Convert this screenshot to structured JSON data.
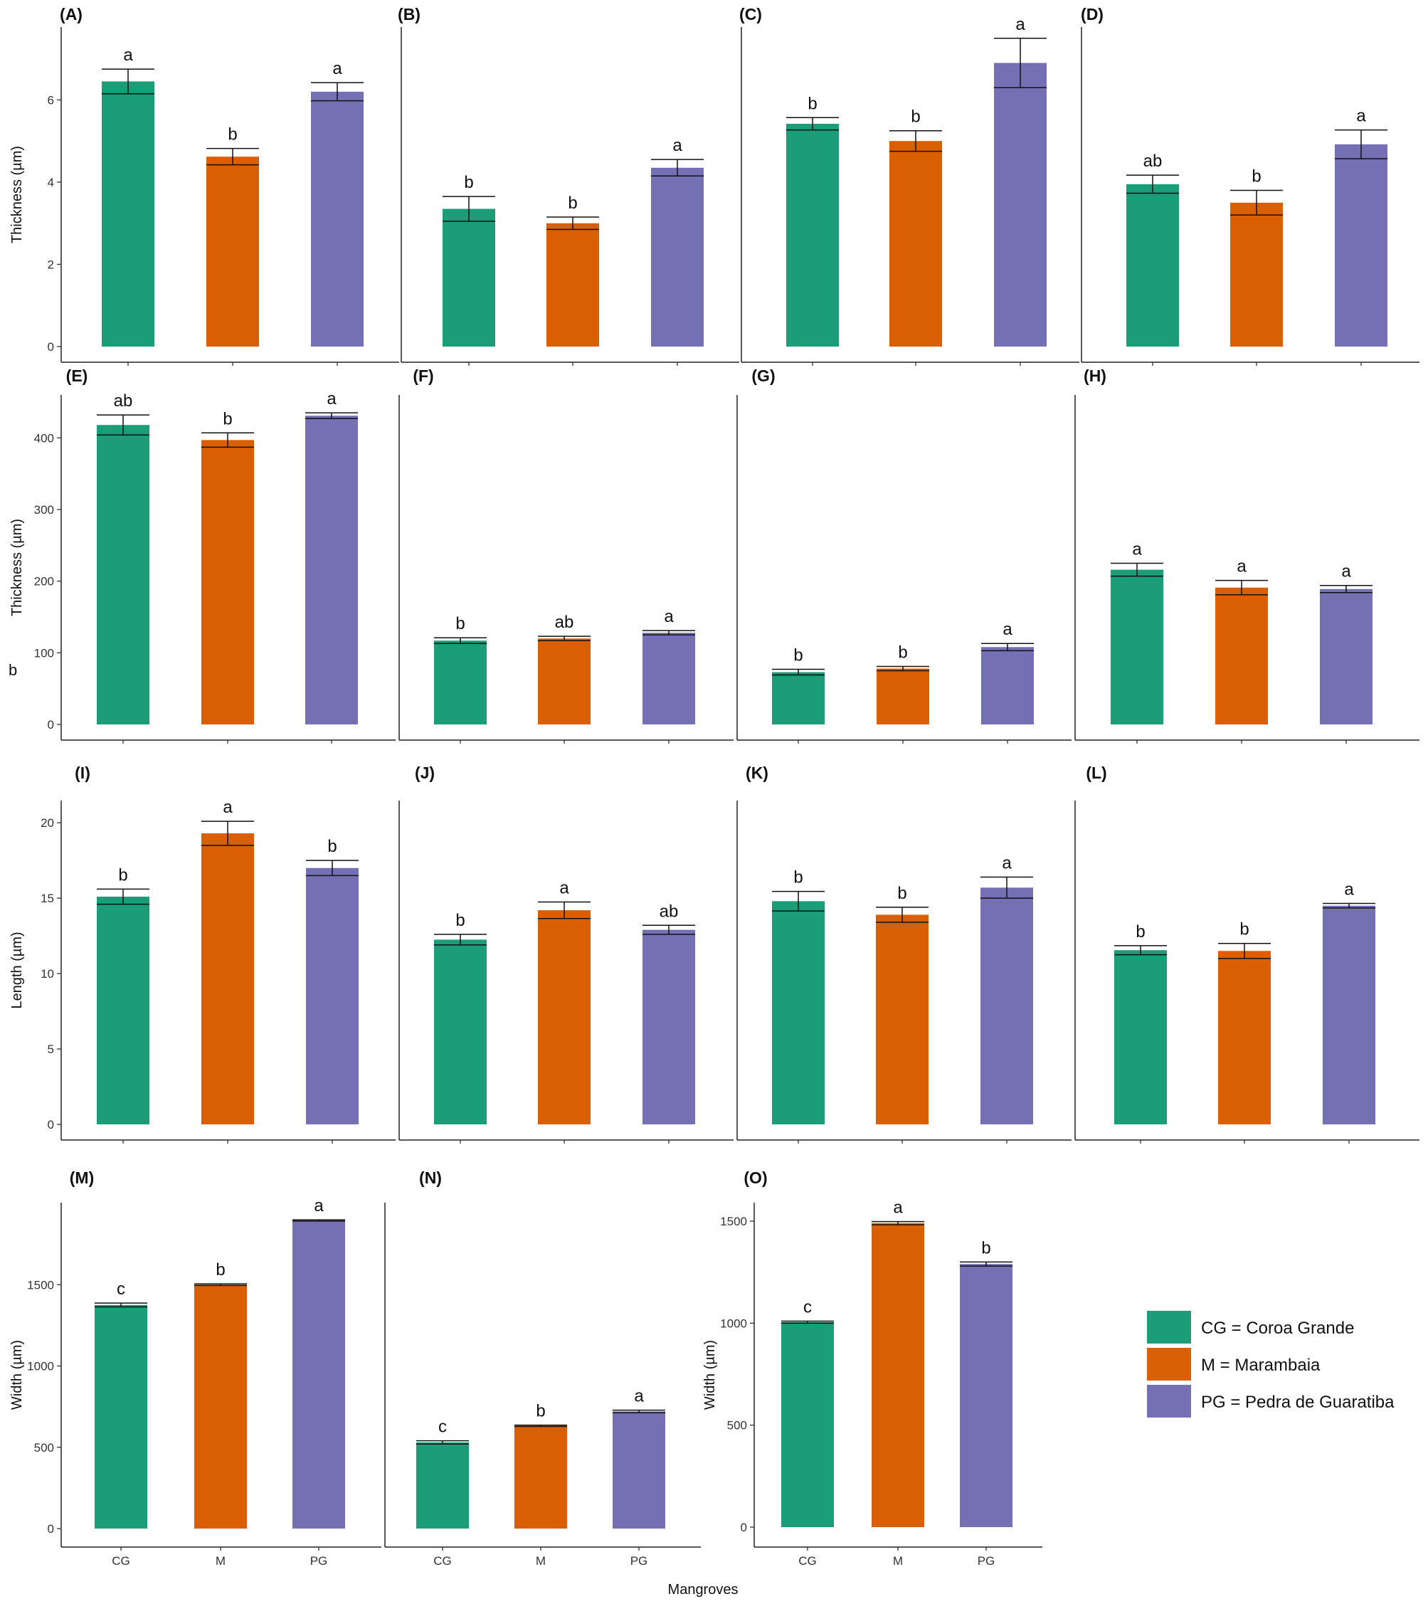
{
  "colors": {
    "CG": "#1b9e77",
    "M": "#d95f02",
    "PG": "#7570b3"
  },
  "x_axis_title": "Mangroves",
  "stray_text": "b",
  "legend": [
    {
      "key": "CG",
      "label": "CG = Coroa Grande"
    },
    {
      "key": "M",
      "label": "M = Marambaia"
    },
    {
      "key": "PG",
      "label": "PG = Pedra de Guaratiba"
    }
  ],
  "chart_data": [
    {
      "panel": "(A)",
      "type": "bar",
      "categories": [
        "CG",
        "M",
        "PG"
      ],
      "ylabel": "Thickness (µm)",
      "ylim": [
        0,
        7.6
      ],
      "yticks": [
        0,
        2,
        4,
        6
      ],
      "values": [
        6.45,
        4.62,
        6.2
      ],
      "errors": [
        0.3,
        0.2,
        0.22
      ],
      "letters": [
        "a",
        "b",
        "a"
      ]
    },
    {
      "panel": "(B)",
      "type": "bar",
      "categories": [
        "CG",
        "M",
        "PG"
      ],
      "ylabel": "",
      "ylim": [
        0,
        7.6
      ],
      "yticks": [],
      "values": [
        3.35,
        3.0,
        4.35
      ],
      "errors": [
        0.3,
        0.15,
        0.2
      ],
      "letters": [
        "b",
        "b",
        "a"
      ]
    },
    {
      "panel": "(C)",
      "type": "bar",
      "categories": [
        "CG",
        "M",
        "PG"
      ],
      "ylabel": "",
      "ylim": [
        0,
        7.6
      ],
      "yticks": [],
      "values": [
        5.42,
        5.0,
        6.9
      ],
      "errors": [
        0.15,
        0.25,
        0.6
      ],
      "letters": [
        "b",
        "b",
        "a"
      ]
    },
    {
      "panel": "(D)",
      "type": "bar",
      "categories": [
        "CG",
        "M",
        "PG"
      ],
      "ylabel": "",
      "ylim": [
        0,
        7.6
      ],
      "yticks": [],
      "values": [
        3.95,
        3.5,
        4.92
      ],
      "errors": [
        0.22,
        0.3,
        0.35
      ],
      "letters": [
        "ab",
        "b",
        "a"
      ]
    },
    {
      "panel": "(E)",
      "type": "bar",
      "categories": [
        "CG",
        "M",
        "PG"
      ],
      "ylabel": "Thickness (µm)",
      "ylim": [
        0,
        450
      ],
      "yticks": [
        0,
        100,
        200,
        300,
        400
      ],
      "values": [
        418,
        397,
        431
      ],
      "errors": [
        14,
        10,
        4
      ],
      "letters": [
        "ab",
        "b",
        "a"
      ]
    },
    {
      "panel": "(F)",
      "type": "bar",
      "categories": [
        "CG",
        "M",
        "PG"
      ],
      "ylabel": "",
      "ylim": [
        0,
        450
      ],
      "yticks": [],
      "values": [
        117,
        120,
        128
      ],
      "errors": [
        4,
        3,
        3
      ],
      "letters": [
        "b",
        "ab",
        "a"
      ]
    },
    {
      "panel": "(G)",
      "type": "bar",
      "categories": [
        "CG",
        "M",
        "PG"
      ],
      "ylabel": "",
      "ylim": [
        0,
        450
      ],
      "yticks": [],
      "values": [
        73,
        78,
        108
      ],
      "errors": [
        4,
        3,
        5
      ],
      "letters": [
        "b",
        "b",
        "a"
      ]
    },
    {
      "panel": "(H)",
      "type": "bar",
      "categories": [
        "CG",
        "M",
        "PG"
      ],
      "ylabel": "",
      "ylim": [
        0,
        450
      ],
      "yticks": [],
      "values": [
        216,
        191,
        189
      ],
      "errors": [
        9,
        10,
        5
      ],
      "letters": [
        "a",
        "a",
        "a"
      ]
    },
    {
      "panel": "(I)",
      "type": "bar",
      "categories": [
        "CG",
        "M",
        "PG"
      ],
      "ylabel": "Length (µm)",
      "ylim": [
        0,
        21
      ],
      "yticks": [
        0,
        5,
        10,
        15,
        20
      ],
      "values": [
        15.1,
        19.3,
        17.0
      ],
      "errors": [
        0.5,
        0.8,
        0.5
      ],
      "letters": [
        "b",
        "a",
        "b"
      ]
    },
    {
      "panel": "(J)",
      "type": "bar",
      "categories": [
        "CG",
        "M",
        "PG"
      ],
      "ylabel": "",
      "ylim": [
        0,
        21
      ],
      "yticks": [],
      "values": [
        12.25,
        14.2,
        12.9
      ],
      "errors": [
        0.35,
        0.55,
        0.3
      ],
      "letters": [
        "b",
        "a",
        "ab"
      ]
    },
    {
      "panel": "(K)",
      "type": "bar",
      "categories": [
        "CG",
        "M",
        "PG"
      ],
      "ylabel": "",
      "ylim": [
        0,
        21
      ],
      "yticks": [],
      "values": [
        14.8,
        13.9,
        15.7
      ],
      "errors": [
        0.65,
        0.5,
        0.7
      ],
      "letters": [
        "b",
        "b",
        "a"
      ]
    },
    {
      "panel": "(L)",
      "type": "bar",
      "categories": [
        "CG",
        "M",
        "PG"
      ],
      "ylabel": "",
      "ylim": [
        0,
        21
      ],
      "yticks": [],
      "values": [
        11.55,
        11.5,
        14.5
      ],
      "errors": [
        0.3,
        0.5,
        0.15
      ],
      "letters": [
        "b",
        "b",
        "a"
      ]
    },
    {
      "panel": "(M)",
      "type": "bar",
      "categories": [
        "CG",
        "M",
        "PG"
      ],
      "ylabel": "Width (µm)",
      "ylim": [
        0,
        1990
      ],
      "yticks": [
        0,
        500,
        1000,
        1500
      ],
      "values": [
        1375,
        1500,
        1895
      ],
      "errors": [
        12,
        5,
        4
      ],
      "letters": [
        "c",
        "b",
        "a"
      ]
    },
    {
      "panel": "(N)",
      "type": "bar",
      "categories": [
        "CG",
        "M",
        "PG"
      ],
      "ylabel": "",
      "ylim": [
        0,
        1990
      ],
      "yticks": [],
      "values": [
        530,
        632,
        720
      ],
      "errors": [
        10,
        4,
        8
      ],
      "letters": [
        "c",
        "b",
        "a"
      ]
    },
    {
      "panel": "(O)",
      "type": "bar",
      "categories": [
        "CG",
        "M",
        "PG"
      ],
      "ylabel": "Width (µm)",
      "ylim": [
        0,
        1575
      ],
      "yticks": [
        0,
        500,
        1000,
        1500
      ],
      "values": [
        1005,
        1490,
        1290
      ],
      "errors": [
        5,
        8,
        10
      ],
      "letters": [
        "c",
        "a",
        "b"
      ]
    }
  ]
}
